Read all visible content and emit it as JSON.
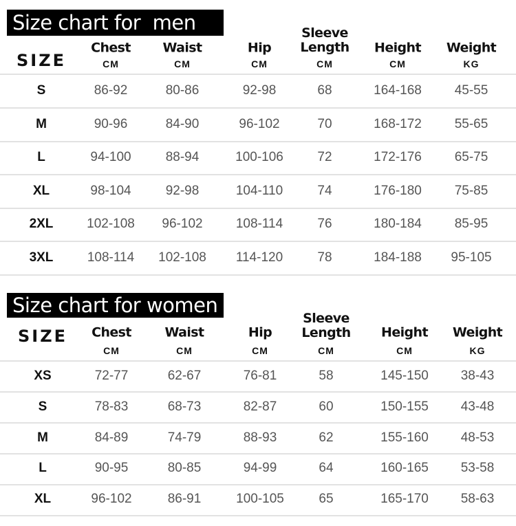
{
  "men": {
    "title": "Size chart for  men",
    "size_header": "SIZE",
    "columns": [
      {
        "name": "Chest",
        "unit": "CM"
      },
      {
        "name": "Waist",
        "unit": "CM"
      },
      {
        "name": "Hip",
        "unit": "CM"
      },
      {
        "name": "Sleeve\nLength",
        "unit": "CM"
      },
      {
        "name": "Height",
        "unit": "CM"
      },
      {
        "name": "Weight",
        "unit": "KG"
      }
    ],
    "rows": [
      [
        "S",
        "86-92",
        "80-86",
        "92-98",
        "68",
        "164-168",
        "45-55"
      ],
      [
        "M",
        "90-96",
        "84-90",
        "96-102",
        "70",
        "168-172",
        "55-65"
      ],
      [
        "L",
        "94-100",
        "88-94",
        "100-106",
        "72",
        "172-176",
        "65-75"
      ],
      [
        "XL",
        "98-104",
        "92-98",
        "104-110",
        "74",
        "176-180",
        "75-85"
      ],
      [
        "2XL",
        "102-108",
        "96-102",
        "108-114",
        "76",
        "180-184",
        "85-95"
      ],
      [
        "3XL",
        "108-114",
        "102-108",
        "114-120",
        "78",
        "184-188",
        "95-105"
      ]
    ]
  },
  "women": {
    "title": "Size chart for women",
    "size_header": "SIZE",
    "columns": [
      {
        "name": "Chest",
        "unit": "CM"
      },
      {
        "name": "Waist",
        "unit": "CM"
      },
      {
        "name": "Hip",
        "unit": "CM"
      },
      {
        "name": "Sleeve\nLength",
        "unit": "CM"
      },
      {
        "name": "Height",
        "unit": "CM"
      },
      {
        "name": "Weight",
        "unit": "KG"
      }
    ],
    "rows": [
      [
        "XS",
        "72-77",
        "62-67",
        "76-81",
        "58",
        "145-150",
        "38-43"
      ],
      [
        "S",
        "78-83",
        "68-73",
        "82-87",
        "60",
        "150-155",
        "43-48"
      ],
      [
        "M",
        "84-89",
        "74-79",
        "88-93",
        "62",
        "155-160",
        "48-53"
      ],
      [
        "L",
        "90-95",
        "80-85",
        "94-99",
        "64",
        "160-165",
        "53-58"
      ],
      [
        "XL",
        "96-102",
        "86-91",
        "100-105",
        "65",
        "165-170",
        "58-63"
      ]
    ]
  }
}
